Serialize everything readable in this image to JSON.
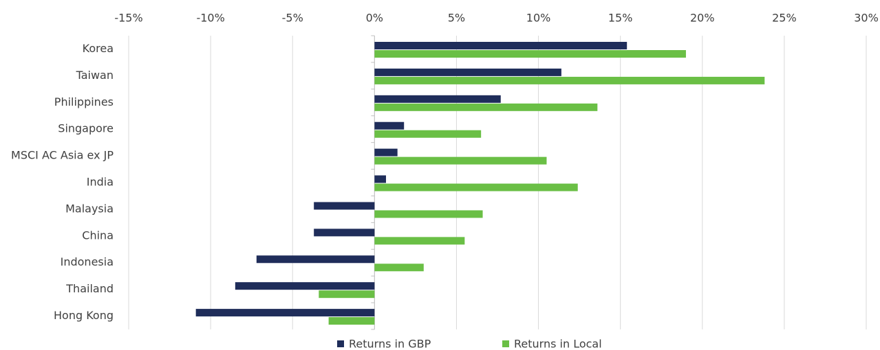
{
  "chart_data": {
    "type": "hbar",
    "categories": [
      "Korea",
      "Taiwan",
      "Philippines",
      "Singapore",
      "MSCI AC Asia ex JP",
      "India",
      "Malaysia",
      "China",
      "Indonesia",
      "Thailand",
      "Hong Kong"
    ],
    "series": [
      {
        "name": "Returns in GBP",
        "color": "#1f2d5a",
        "values": [
          15.4,
          11.4,
          7.7,
          1.8,
          1.4,
          0.7,
          -3.7,
          -3.7,
          -7.2,
          -8.5,
          -10.9
        ]
      },
      {
        "name": "Returns in Local",
        "color": "#6abf45",
        "values": [
          19.0,
          23.8,
          13.6,
          6.5,
          10.5,
          12.4,
          6.6,
          5.5,
          3.0,
          -3.4,
          -2.8
        ]
      }
    ],
    "xlim": [
      -15,
      30
    ],
    "xticks": [
      {
        "value": -15,
        "label": "-15%"
      },
      {
        "value": -10,
        "label": "-10%"
      },
      {
        "value": -5,
        "label": "-5%"
      },
      {
        "value": 0,
        "label": "0%"
      },
      {
        "value": 5,
        "label": "5%"
      },
      {
        "value": 10,
        "label": "10%"
      },
      {
        "value": 15,
        "label": "15%"
      },
      {
        "value": 20,
        "label": "20%"
      },
      {
        "value": 25,
        "label": "25%"
      },
      {
        "value": 30,
        "label": "30%"
      }
    ],
    "grid": true,
    "legend": "bottom"
  }
}
